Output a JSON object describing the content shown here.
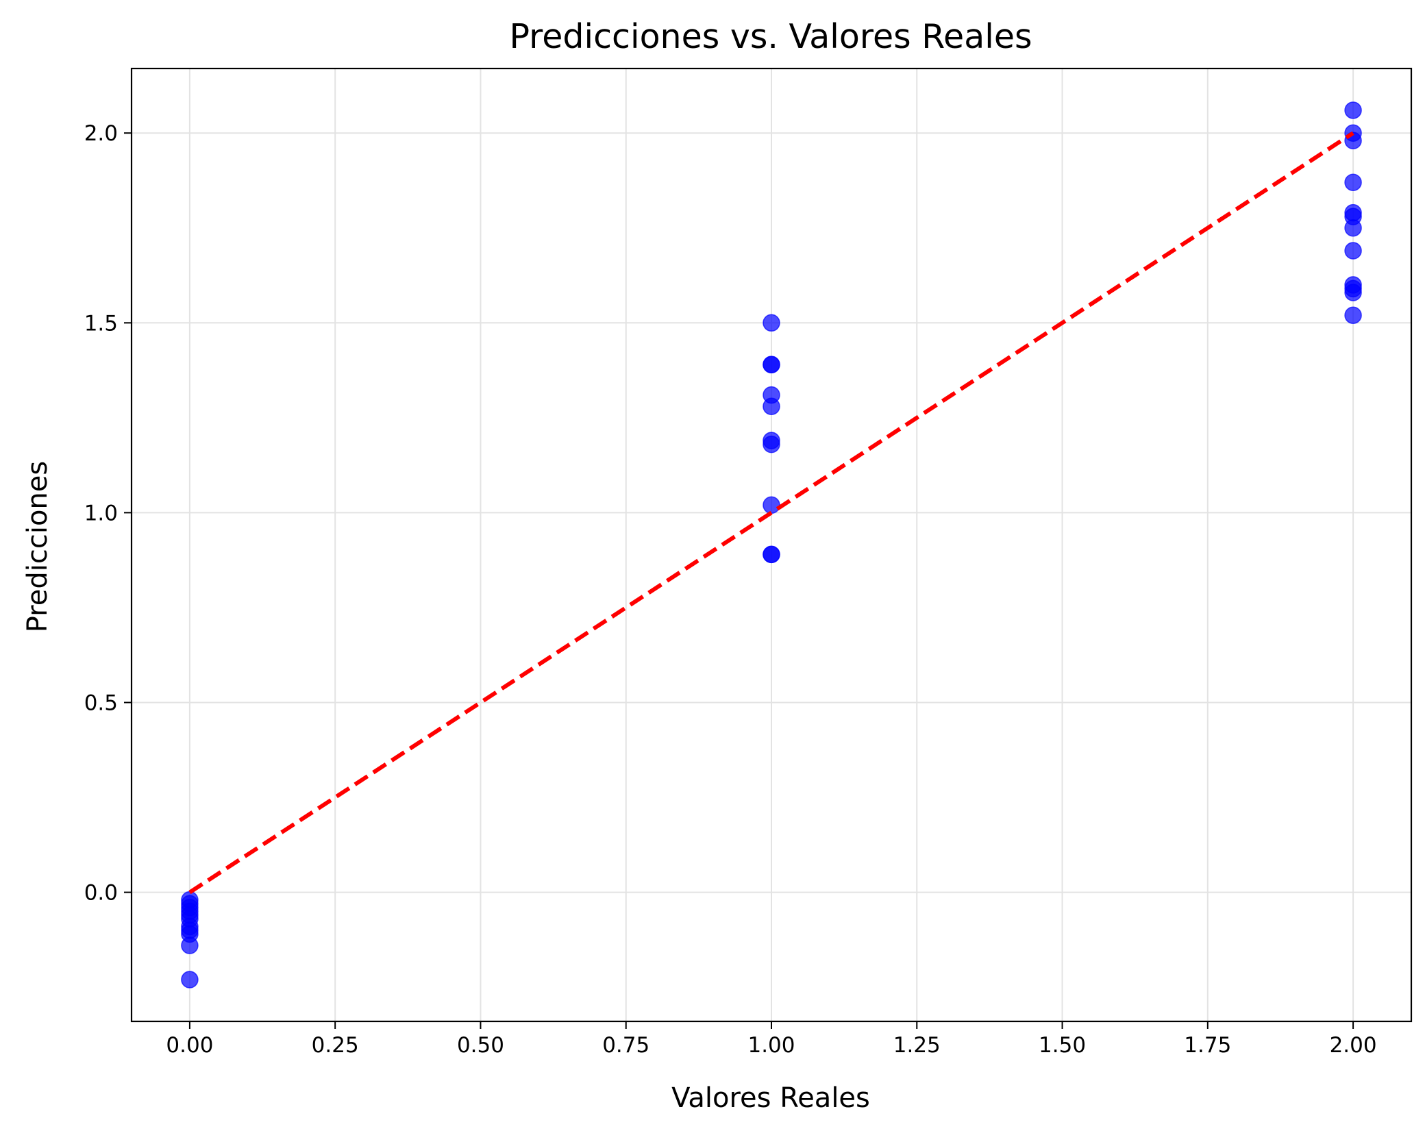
{
  "chart_data": {
    "type": "scatter",
    "title": "Predicciones vs. Valores Reales",
    "xlabel": "Valores Reales",
    "ylabel": "Predicciones",
    "xlim": [
      -0.1,
      2.1
    ],
    "ylim": [
      -0.34,
      2.17
    ],
    "xticks": [
      0.0,
      0.25,
      0.5,
      0.75,
      1.0,
      1.25,
      1.5,
      1.75,
      2.0
    ],
    "xtick_labels": [
      "0.00",
      "0.25",
      "0.50",
      "0.75",
      "1.00",
      "1.25",
      "1.50",
      "1.75",
      "2.00"
    ],
    "yticks": [
      0.0,
      0.5,
      1.0,
      1.5,
      2.0
    ],
    "ytick_labels": [
      "0.0",
      "0.5",
      "1.0",
      "1.5",
      "2.0"
    ],
    "grid": true,
    "point_color": "#0000ff",
    "line_color": "#ff0000",
    "series": [
      {
        "type": "scatter",
        "points": [
          [
            0,
            -0.02
          ],
          [
            0,
            -0.03
          ],
          [
            0,
            -0.04
          ],
          [
            0,
            -0.05
          ],
          [
            0,
            -0.06
          ],
          [
            0,
            -0.07
          ],
          [
            0,
            -0.09
          ],
          [
            0,
            -0.1
          ],
          [
            0,
            -0.11
          ],
          [
            0,
            -0.14
          ],
          [
            0,
            -0.23
          ],
          [
            1,
            1.5
          ],
          [
            1,
            1.39
          ],
          [
            1,
            1.39
          ],
          [
            1,
            1.31
          ],
          [
            1,
            1.28
          ],
          [
            1,
            1.19
          ],
          [
            1,
            1.18
          ],
          [
            1,
            1.02
          ],
          [
            1,
            0.89
          ],
          [
            1,
            0.89
          ],
          [
            2,
            2.06
          ],
          [
            2,
            2.0
          ],
          [
            2,
            1.98
          ],
          [
            2,
            1.87
          ],
          [
            2,
            1.79
          ],
          [
            2,
            1.78
          ],
          [
            2,
            1.75
          ],
          [
            2,
            1.69
          ],
          [
            2,
            1.6
          ],
          [
            2,
            1.59
          ],
          [
            2,
            1.58
          ],
          [
            2,
            1.52
          ]
        ]
      },
      {
        "type": "line",
        "style": "dashed",
        "points": [
          [
            0,
            0
          ],
          [
            2,
            2
          ]
        ]
      }
    ]
  }
}
